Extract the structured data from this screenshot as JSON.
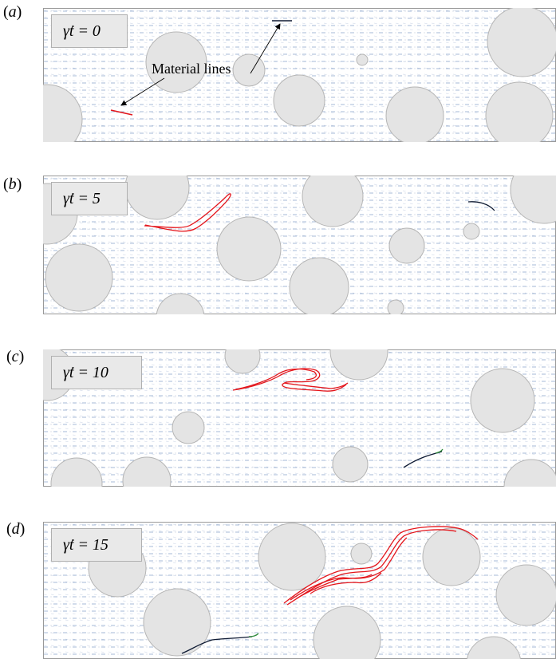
{
  "annotation": "Material lines",
  "colors": {
    "frame": "#999999",
    "particle_fill": "#e4e4e4",
    "particle_stroke": "#b5b5b5",
    "arrow": "#6f8fb8",
    "line_red": "#e4151b",
    "line_dark": "#0e1a33",
    "line_green": "#2e8b3a"
  },
  "panels": [
    {
      "label_open": "(",
      "label_letter": "a",
      "label_close": ")",
      "time": "γ̇t = 0"
    },
    {
      "label_open": "(",
      "label_letter": "b",
      "label_close": ")",
      "time": "γ̇t = 5"
    },
    {
      "label_open": "(",
      "label_letter": "c",
      "label_close": ")",
      "time": "γ̇t = 10"
    },
    {
      "label_open": "(",
      "label_letter": "d",
      "label_close": ")",
      "time": "γ̇t = 15"
    }
  ]
}
